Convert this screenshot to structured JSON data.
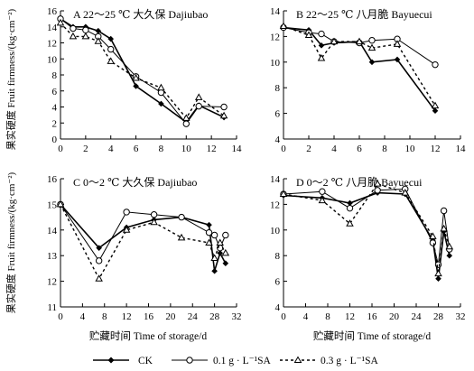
{
  "figure": {
    "ylabel": "果实硬度 Fruit firmness/(kg·cm⁻²)",
    "xlabel": "贮藏时间 Time of storage/d"
  },
  "legend": {
    "ck": "CK",
    "sa01": "0.1 g · L⁻¹SA",
    "sa03": "0.3 g · L⁻¹SA"
  },
  "chart_data": [
    {
      "type": "line",
      "title": "A 22～25 ℃ 大久保 Dajiubao",
      "x": [
        0,
        1,
        2,
        3,
        4,
        6,
        8,
        10,
        11,
        13
      ],
      "xlim": [
        0,
        14
      ],
      "xticks": [
        0,
        2,
        4,
        6,
        8,
        10,
        12,
        14
      ],
      "ylim": [
        0,
        16
      ],
      "yticks": [
        0,
        2,
        4,
        6,
        8,
        10,
        12,
        14,
        16
      ],
      "series": [
        {
          "name": "CK",
          "values": [
            15.0,
            14.0,
            14.0,
            13.5,
            12.5,
            6.6,
            4.4,
            2.1,
            4.2,
            2.7
          ]
        },
        {
          "name": "0.1 g · L⁻¹SA",
          "values": [
            15.0,
            13.8,
            13.6,
            12.8,
            11.2,
            7.8,
            5.8,
            1.9,
            4.1,
            4.0
          ]
        },
        {
          "name": "0.3 g · L⁻¹SA",
          "values": [
            14.5,
            12.8,
            12.8,
            12.2,
            9.7,
            7.6,
            6.4,
            2.6,
            5.2,
            2.9
          ]
        }
      ]
    },
    {
      "type": "line",
      "title": "B 22～25 ℃ 八月脆 Bayuecui",
      "x": [
        0,
        2,
        3,
        4,
        6,
        7,
        9,
        12
      ],
      "xlim": [
        0,
        14
      ],
      "xticks": [
        0,
        2,
        4,
        6,
        8,
        10,
        12,
        14
      ],
      "ylim": [
        4,
        14
      ],
      "yticks": [
        4,
        6,
        8,
        10,
        12,
        14
      ],
      "series": [
        {
          "name": "CK",
          "values": [
            12.7,
            12.5,
            11.3,
            11.5,
            11.6,
            10.0,
            10.2,
            6.2
          ]
        },
        {
          "name": "0.1 g · L⁻¹SA",
          "values": [
            12.7,
            12.3,
            12.2,
            11.6,
            11.5,
            11.7,
            11.8,
            9.8
          ]
        },
        {
          "name": "0.3 g · L⁻¹SA",
          "values": [
            12.8,
            12.1,
            10.3,
            11.6,
            11.6,
            11.1,
            11.4,
            6.6
          ]
        }
      ]
    },
    {
      "type": "line",
      "title": "C 0～2 ℃ 大久保 Dajiubao",
      "x": [
        0,
        7,
        12,
        17,
        22,
        27,
        28,
        29,
        30
      ],
      "xlim": [
        0,
        32
      ],
      "xticks": [
        0,
        4,
        8,
        12,
        16,
        20,
        24,
        28,
        32
      ],
      "ylim": [
        11,
        16
      ],
      "yticks": [
        11,
        12,
        13,
        14,
        15,
        16
      ],
      "series": [
        {
          "name": "CK",
          "values": [
            15.0,
            13.3,
            14.1,
            14.4,
            14.5,
            14.2,
            12.4,
            13.1,
            12.7
          ]
        },
        {
          "name": "0.1 g · L⁻¹SA",
          "values": [
            15.0,
            12.8,
            14.7,
            14.6,
            14.5,
            13.9,
            13.8,
            13.3,
            13.8
          ]
        },
        {
          "name": "0.3 g · L⁻¹SA",
          "values": [
            15.0,
            12.1,
            14.0,
            14.3,
            13.7,
            13.5,
            12.9,
            13.5,
            13.1
          ]
        }
      ]
    },
    {
      "type": "line",
      "title": "D 0～2 ℃ 八月脆 Bayuecui",
      "x": [
        0,
        7,
        12,
        17,
        22,
        27,
        28,
        29,
        30
      ],
      "xlim": [
        0,
        32
      ],
      "xticks": [
        0,
        4,
        8,
        12,
        16,
        20,
        24,
        28,
        32
      ],
      "ylim": [
        4,
        14
      ],
      "yticks": [
        4,
        6,
        8,
        10,
        12,
        14
      ],
      "series": [
        {
          "name": "CK",
          "values": [
            12.7,
            12.5,
            12.1,
            12.9,
            12.8,
            9.2,
            6.2,
            9.9,
            8.0
          ]
        },
        {
          "name": "0.1 g · L⁻¹SA",
          "values": [
            12.8,
            13.0,
            11.7,
            13.1,
            13.2,
            9.0,
            7.3,
            11.5,
            8.5
          ]
        },
        {
          "name": "0.3 g · L⁻¹SA",
          "values": [
            12.8,
            12.3,
            10.5,
            13.6,
            12.9,
            9.5,
            6.6,
            10.1,
            8.7
          ]
        }
      ]
    }
  ]
}
